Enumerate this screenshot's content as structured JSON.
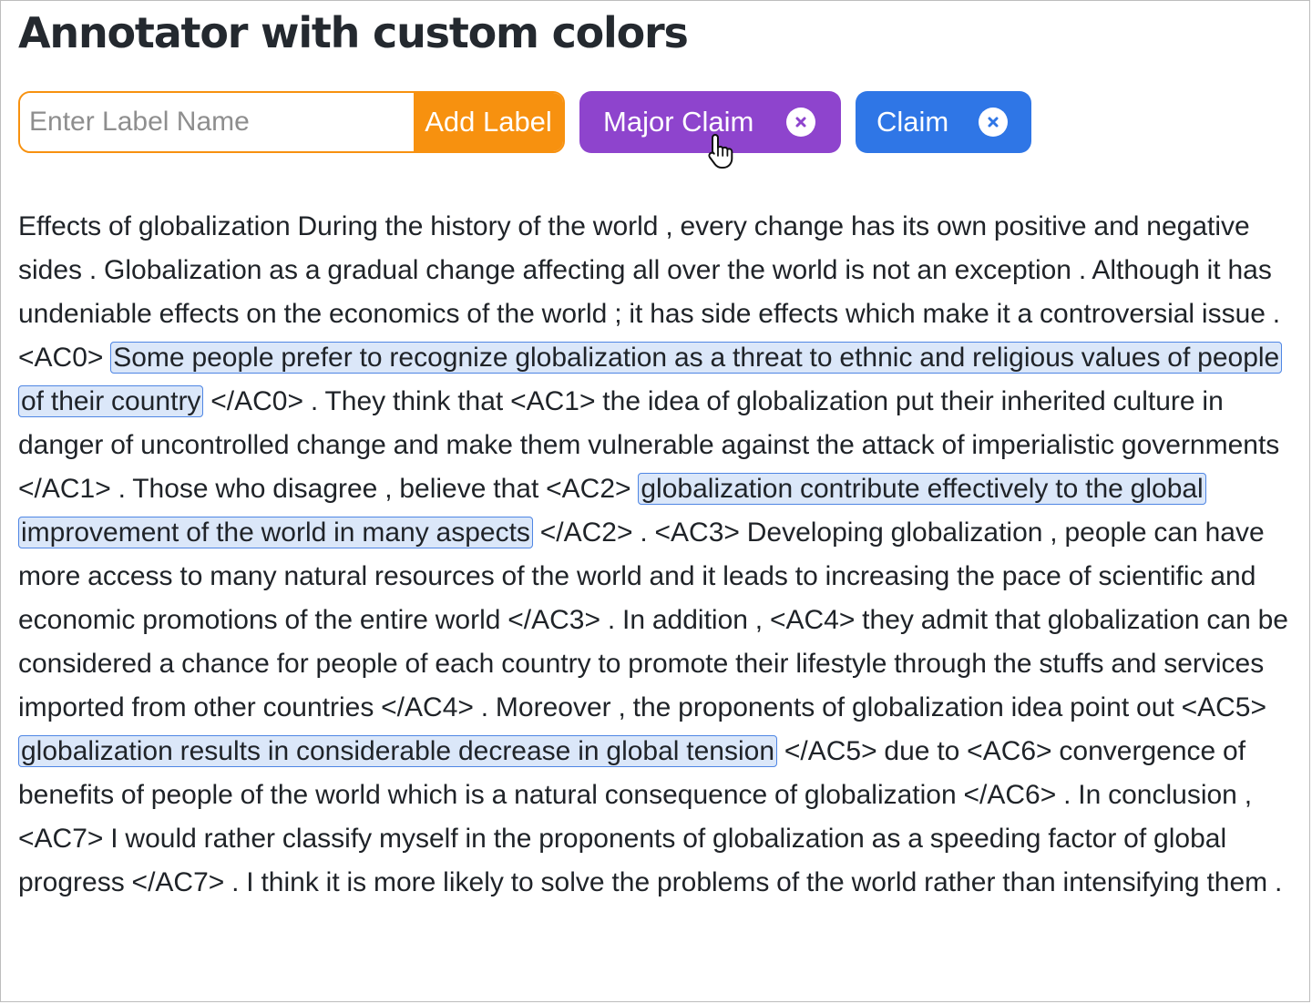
{
  "title": "Annotator with custom colors",
  "label_input": {
    "placeholder": "Enter Label Name",
    "value": ""
  },
  "add_button_label": "Add Label",
  "labels": [
    {
      "name": "Major Claim",
      "color": "#8e44cd"
    },
    {
      "name": "Claim",
      "color": "#2f76e6"
    }
  ],
  "colors": {
    "accent": "#f7910f",
    "highlight_bg": "#dbe7f9",
    "highlight_border": "#4f86e4"
  },
  "document": {
    "segments": [
      {
        "text": "Effects of globalization During the history of the world , every change has its own positive and negative sides . Globalization as a gradual change affecting all over the world is not an exception . Although it has undeniable effects on the economics of the world ; it has side effects which make it a controversial issue . <AC0> "
      },
      {
        "text": "Some people prefer to recognize globalization as a threat to ethnic and religious values of people of their country",
        "label": "Claim"
      },
      {
        "text": " </AC0> . They think that <AC1> the idea of globalization put their inherited culture in danger of uncontrolled change and make them vulnerable against the attack of imperialistic governments </AC1> . Those who disagree , believe that <AC2> "
      },
      {
        "text": "globalization contribute effectively to the global improvement of the world in many aspects",
        "label": "Claim"
      },
      {
        "text": " </AC2> . <AC3> Developing globalization , people can have more access to many natural resources of the world and it leads to increasing the pace of scientific and economic promotions of the entire world </AC3> . In addition , <AC4> they admit that globalization can be considered a chance for people of each country to promote their lifestyle through the stuffs and services imported from other countries </AC4> . Moreover , the proponents of globalization idea point out <AC5> "
      },
      {
        "text": "globalization results in considerable decrease in global tension",
        "label": "Claim"
      },
      {
        "text": " </AC5> due to <AC6> convergence of benefits of people of the world which is a natural consequence of globalization </AC6> . In conclusion , <AC7> I would rather classify myself in the proponents of globalization as a speeding factor of global progress </AC7> . I think it is more likely to solve the problems of the world rather than intensifying them ."
      }
    ]
  },
  "icons": {
    "chip_remove": "close-circle-icon",
    "pointer": "hand-pointer-icon"
  }
}
